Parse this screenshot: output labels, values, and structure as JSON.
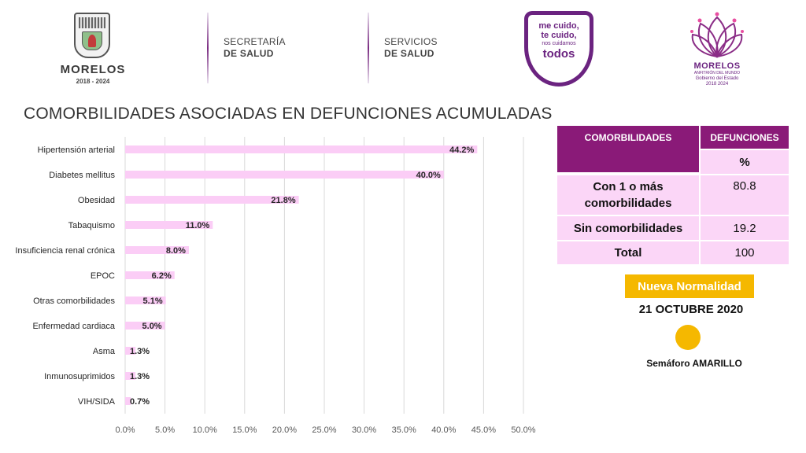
{
  "header": {
    "state_name": "MORELOS",
    "state_years": "2018 - 2024",
    "secretaria_line1": "SECRETARÍA",
    "secretaria_line2": "DE SALUD",
    "servicios_line1": "SERVICIOS",
    "servicios_line2": "DE SALUD",
    "slogan_line1": "me cuido,",
    "slogan_line2": "te cuido,",
    "slogan_line3": "nos cuidamos",
    "slogan_line4": "todos",
    "right_logo_name": "MORELOS",
    "right_logo_sub": "ANFITRIÓN DEL MUNDO",
    "right_logo_gob": "Gobierno del Estado",
    "right_logo_years": "2018  2024",
    "accent_color": "#6b2380"
  },
  "page_title": "COMORBILIDADES ASOCIADAS EN DEFUNCIONES ACUMULADAS",
  "chart_data": {
    "type": "bar",
    "orientation": "horizontal",
    "categories": [
      "Hipertensión arterial",
      "Diabetes mellitus",
      "Obesidad",
      "Tabaquismo",
      "Insuficiencia renal crónica",
      "EPOC",
      "Otras comorbilidades",
      "Enfermedad cardiaca",
      "Asma",
      "Inmunosuprimidos",
      "VIH/SIDA"
    ],
    "values": [
      44.2,
      40.0,
      21.8,
      11.0,
      8.0,
      6.2,
      5.1,
      5.0,
      1.3,
      1.3,
      0.7
    ],
    "data_labels": [
      "44.2%",
      "40.0%",
      "21.8%",
      "11.0%",
      "8.0%",
      "6.2%",
      "5.1%",
      "5.0%",
      "1.3%",
      "1.3%",
      "0.7%"
    ],
    "xlim": [
      0,
      50
    ],
    "x_ticks": [
      0,
      5,
      10,
      15,
      20,
      25,
      30,
      35,
      40,
      45,
      50
    ],
    "x_tick_labels": [
      "0.0%",
      "5.0%",
      "10.0%",
      "15.0%",
      "20.0%",
      "25.0%",
      "30.0%",
      "35.0%",
      "40.0%",
      "45.0%",
      "50.0%"
    ],
    "grid": true,
    "bar_color": "#fbcdf6"
  },
  "table": {
    "header_col1": "COMORBILIDADES",
    "header_col2": "DEFUNCIONES",
    "header_unit": "%",
    "rows": [
      {
        "label_line1": "Con 1 o más",
        "label_line2": "comorbilidades",
        "value": "80.8"
      },
      {
        "label": "Sin comorbilidades",
        "value": "19.2"
      },
      {
        "label": "Total",
        "value": "100"
      }
    ],
    "header_color": "#8a1a78",
    "cell_color": "#fbd6f7"
  },
  "status": {
    "phase_label": "Nueva Normalidad",
    "date": "21 OCTUBRE 2020",
    "semaforo_label": "Semáforo AMARILLO",
    "semaforo_color": "#f5b800"
  }
}
